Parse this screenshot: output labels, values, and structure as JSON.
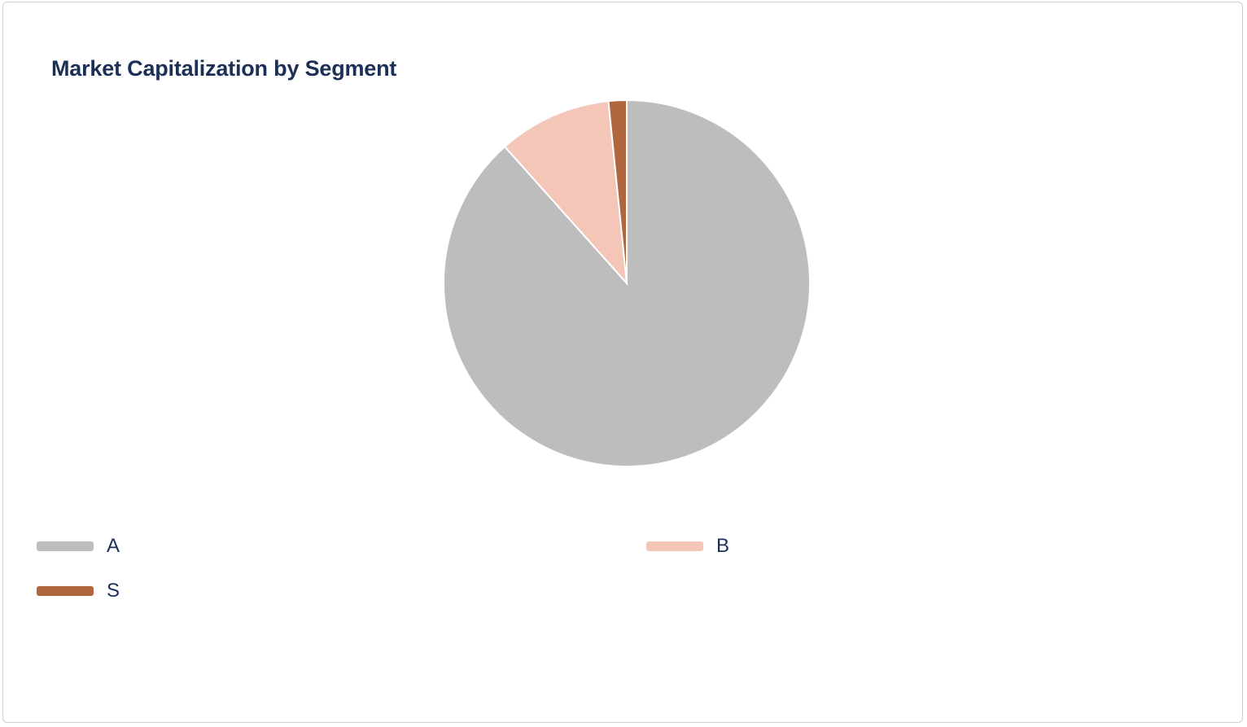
{
  "chart_data": {
    "type": "pie",
    "title": "Market Capitalization by Segment",
    "series": [
      {
        "name": "A",
        "value": 88.4,
        "color": "#bdbdbd"
      },
      {
        "name": "B",
        "value": 10.0,
        "color": "#f3c6b8"
      },
      {
        "name": "S",
        "value": 1.6,
        "color": "#b0663f"
      }
    ],
    "legend_position": "bottom",
    "slice_border_color": "#ffffff"
  }
}
